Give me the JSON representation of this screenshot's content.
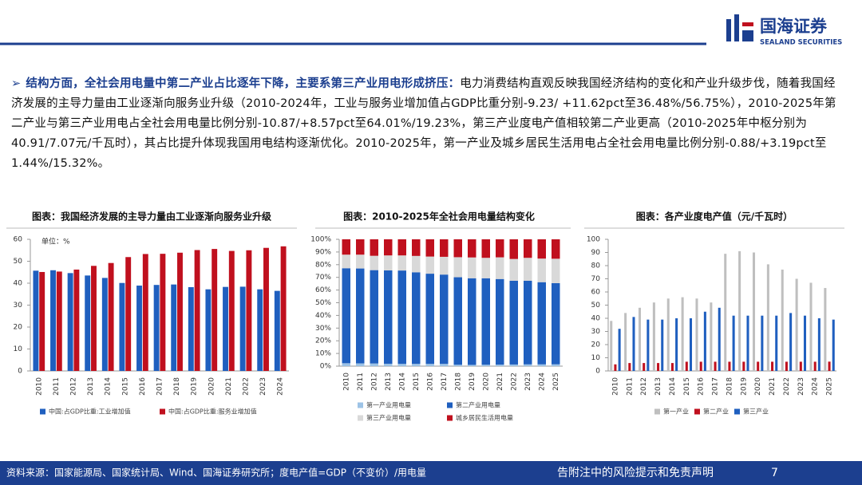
{
  "header": {
    "logo": "国海证券",
    "logo_sub": "SEALAND SECURITIES"
  },
  "body": {
    "heading": "结构方面，全社会用电量中第二产业占比逐年下降，主要系第三产业用电形成挤压：",
    "text": "电力消费结构直观反映我国经济结构的变化和产业升级步伐，随着我国经济发展的主导力量由工业逐渐向服务业升级（2010-2024年，工业与服务业增加值占GDP比重分别-9.23/ +11.62pct至36.48%/56.75%），2010-2025年第二产业与第三产业用电占全社会用电量比例分别-10.87/+8.57pct至64.01%/19.23%，第三产业度电产值相较第二产业更高（2010-2025年中枢分别为40.91/7.07元/千瓦时），其占比提升体现我国用电结构逐渐优化。2010-2025年，第一产业及城乡居民生活用电占全社会用电量比例分别-0.88/+3.19pct至1.44%/15.32%。"
  },
  "chart_data": [
    {
      "type": "bar",
      "title": "图表：我国经济发展的主导力量由工业逐渐向服务业升级",
      "unit": "单位：%",
      "categories": [
        "2010",
        "2011",
        "2012",
        "2013",
        "2014",
        "2015",
        "2016",
        "2017",
        "2018",
        "2019",
        "2020",
        "2021",
        "2022",
        "2023",
        "2024"
      ],
      "series": [
        {
          "name": "中国:占GDP比重:工业增加值",
          "color": "#1f5fbf",
          "values": [
            45.7,
            45.9,
            44.6,
            43.5,
            42.4,
            40.1,
            38.9,
            39.2,
            39.4,
            38.2,
            37.2,
            38.3,
            38.4,
            37.2,
            36.5
          ]
        },
        {
          "name": "中国:占GDP比重:服务业增加值",
          "color": "#c0101e",
          "values": [
            45.1,
            45.3,
            46.2,
            47.9,
            49.2,
            51.9,
            53.3,
            53.4,
            53.9,
            55.1,
            55.6,
            54.7,
            55.0,
            56.1,
            56.8
          ]
        }
      ],
      "ylim": [
        0,
        60
      ],
      "yticks": [
        0,
        10,
        20,
        30,
        40,
        50,
        60
      ]
    },
    {
      "type": "stacked_bar",
      "title": "图表：2010-2025年全社会用电量结构变化",
      "categories": [
        "2010",
        "2011",
        "2012",
        "2013",
        "2014",
        "2015",
        "2016",
        "2017",
        "2018",
        "2019",
        "2020",
        "2021",
        "2022",
        "2023",
        "2024",
        "2025"
      ],
      "series": [
        {
          "name": "第一产业用电量",
          "color": "#9dc3e6",
          "values": [
            2.3,
            2.2,
            2.1,
            1.9,
            1.8,
            1.8,
            1.8,
            1.8,
            1.1,
            1.0,
            1.1,
            1.2,
            1.3,
            1.4,
            1.4,
            1.44
          ]
        },
        {
          "name": "第二产业用电量",
          "color": "#1f5fbf",
          "values": [
            74.9,
            74.8,
            73.6,
            73.6,
            73.6,
            72.2,
            71.1,
            70.4,
            69.0,
            68.3,
            68.2,
            67.5,
            66.0,
            65.9,
            64.8,
            64.01
          ]
        },
        {
          "name": "第三产业用电量",
          "color": "#d9d9d9",
          "values": [
            10.7,
            10.9,
            11.3,
            11.8,
            11.9,
            12.9,
            13.5,
            14.0,
            15.8,
            16.4,
            16.1,
            17.1,
            17.2,
            18.1,
            18.6,
            19.23
          ]
        },
        {
          "name": "城乡居民生活用电量",
          "color": "#c0101e",
          "values": [
            12.1,
            12.1,
            13.0,
            12.7,
            12.7,
            13.1,
            13.6,
            13.8,
            14.1,
            14.3,
            14.6,
            14.2,
            15.5,
            14.6,
            15.2,
            15.32
          ]
        }
      ],
      "ylim": [
        0,
        100
      ],
      "yticks": [
        {
          "value": 0,
          "label": "0%"
        },
        {
          "value": 10,
          "label": "10%"
        },
        {
          "value": 20,
          "label": "20%"
        },
        {
          "value": 30,
          "label": "30%"
        },
        {
          "value": 40,
          "label": "40%"
        },
        {
          "value": 50,
          "label": "50%"
        },
        {
          "value": 60,
          "label": "60%"
        },
        {
          "value": 70,
          "label": "70%"
        },
        {
          "value": 80,
          "label": "80%"
        },
        {
          "value": 90,
          "label": "90%"
        },
        {
          "value": 100,
          "label": "100%"
        }
      ]
    },
    {
      "type": "bar",
      "title": "图表：各产业度电产值（元/千瓦时）",
      "categories": [
        "2010",
        "2011",
        "2012",
        "2013",
        "2014",
        "2015",
        "2016",
        "2017",
        "2018",
        "2019",
        "2020",
        "2021",
        "2022",
        "2023",
        "2024",
        "2025"
      ],
      "series": [
        {
          "name": "第一产业",
          "color": "#bfbfbf",
          "values": [
            38,
            44,
            48,
            52,
            55,
            56,
            55,
            52,
            89,
            91,
            90,
            81,
            77,
            70,
            67,
            63
          ]
        },
        {
          "name": "第二产业",
          "color": "#c0101e",
          "values": [
            5,
            6,
            6,
            6,
            6,
            7,
            7,
            7,
            7,
            7,
            7,
            7,
            7,
            7,
            7,
            7.07
          ]
        },
        {
          "name": "第三产业",
          "color": "#1f5fbf",
          "values": [
            32,
            41,
            39,
            39,
            40,
            40,
            45,
            48,
            42,
            42,
            42,
            42,
            44,
            42,
            40,
            39
          ]
        }
      ],
      "ylim": [
        0,
        100
      ],
      "yticks": [
        0,
        10,
        20,
        30,
        40,
        50,
        60,
        70,
        80,
        90,
        100
      ]
    }
  ],
  "footer": {
    "source": "资料来源：国家能源局、国家统计局、Wind、国海证券研究所；度电产值=GDP（不变价）/用电量",
    "disclaimer": "告附注中的风险提示和免责声明",
    "page": "7"
  }
}
